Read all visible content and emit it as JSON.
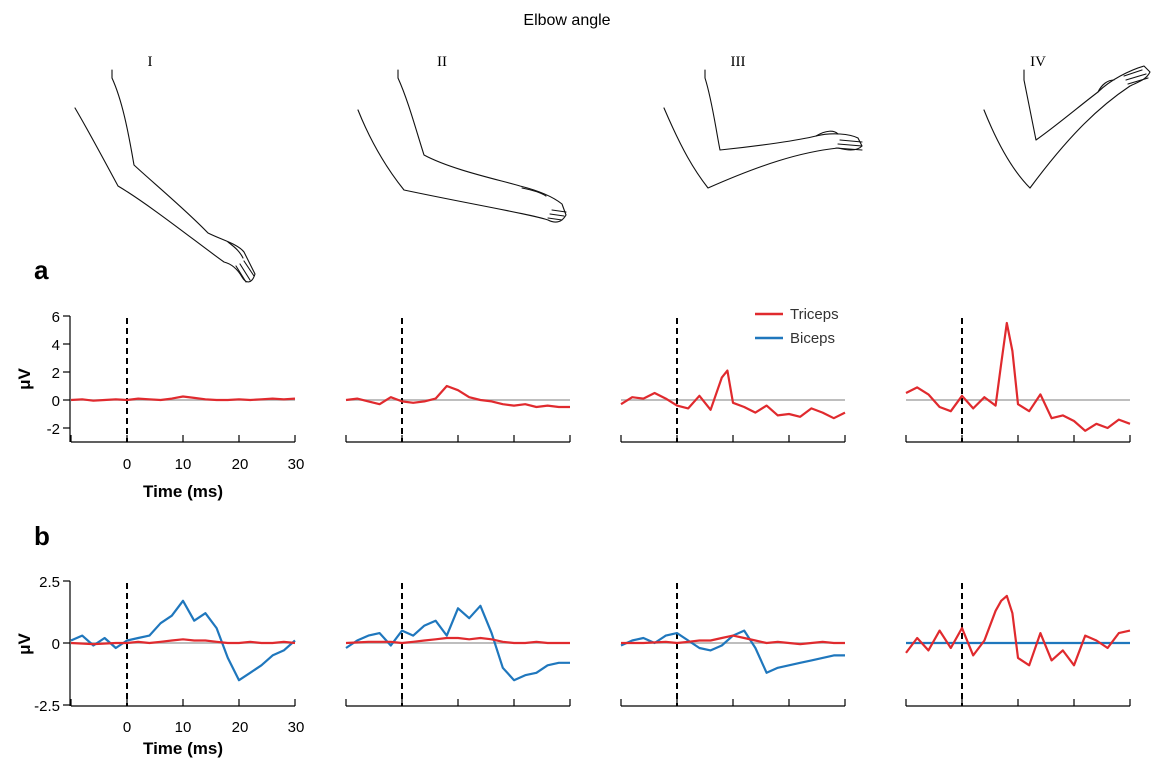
{
  "header": {
    "title": "Elbow angle",
    "positions": [
      "I",
      "II",
      "III",
      "IV"
    ]
  },
  "panels": [
    {
      "label": "a",
      "ylabel": "μV",
      "xlabel": "Time (ms)",
      "yticks": [
        "6",
        "4",
        "2",
        "0",
        "-2"
      ]
    },
    {
      "label": "b",
      "ylabel": "μV",
      "xlabel": "Time (ms)",
      "yticks": [
        "2.5",
        "0",
        "-2.5"
      ]
    }
  ],
  "xticks": [
    "0",
    "10",
    "20",
    "30"
  ],
  "legend": {
    "triceps": "Triceps",
    "biceps": "Biceps"
  },
  "colors": {
    "triceps": "#e02a2e",
    "biceps": "#1f77bd",
    "zero_line": "#a8a8a8",
    "axis": "#000000"
  },
  "chart_data": [
    {
      "type": "line",
      "panel": "a",
      "title": "",
      "xlabel": "Time (ms)",
      "ylabel": "μV",
      "xlim": [
        -10,
        30
      ],
      "ylim": [
        -3,
        6
      ],
      "stimulus_at": 0,
      "legend_position": "top-right",
      "conditions": [
        {
          "name": "I",
          "series": [
            {
              "name": "Triceps",
              "x": [
                -10,
                -8,
                -6,
                -4,
                -2,
                0,
                2,
                4,
                6,
                8,
                10,
                12,
                14,
                16,
                18,
                20,
                22,
                24,
                26,
                28,
                30
              ],
              "y": [
                0,
                0.05,
                -0.05,
                0,
                0.05,
                0,
                0.1,
                0.05,
                0,
                0.1,
                0.25,
                0.15,
                0.05,
                0,
                0,
                0.05,
                0,
                0.05,
                0.1,
                0.05,
                0.1
              ]
            }
          ]
        },
        {
          "name": "II",
          "series": [
            {
              "name": "Triceps",
              "x": [
                -10,
                -8,
                -6,
                -4,
                -2,
                0,
                2,
                4,
                6,
                8,
                10,
                12,
                14,
                16,
                18,
                20,
                22,
                24,
                26,
                28,
                30
              ],
              "y": [
                0,
                0.1,
                -0.1,
                -0.3,
                0.2,
                -0.1,
                -0.2,
                -0.1,
                0.1,
                1.0,
                0.7,
                0.2,
                0,
                -0.1,
                -0.3,
                -0.4,
                -0.3,
                -0.5,
                -0.4,
                -0.5,
                -0.5
              ]
            }
          ]
        },
        {
          "name": "III",
          "series": [
            {
              "name": "Triceps",
              "x": [
                -10,
                -8,
                -6,
                -4,
                -2,
                0,
                2,
                4,
                6,
                8,
                9,
                10,
                12,
                14,
                16,
                18,
                20,
                22,
                24,
                26,
                28,
                30
              ],
              "y": [
                -0.3,
                0.2,
                0.1,
                0.5,
                0.1,
                -0.4,
                -0.6,
                0.3,
                -0.7,
                1.6,
                2.1,
                -0.2,
                -0.5,
                -0.9,
                -0.4,
                -1.1,
                -1.0,
                -1.2,
                -0.6,
                -0.9,
                -1.3,
                -0.9
              ]
            }
          ]
        },
        {
          "name": "IV",
          "series": [
            {
              "name": "Triceps",
              "x": [
                -10,
                -8,
                -6,
                -4,
                -2,
                0,
                2,
                4,
                6,
                7,
                8,
                9,
                10,
                12,
                14,
                16,
                18,
                20,
                22,
                24,
                26,
                28,
                30
              ],
              "y": [
                0.5,
                0.9,
                0.4,
                -0.5,
                -0.8,
                0.3,
                -0.6,
                0.2,
                -0.4,
                2.6,
                5.5,
                3.5,
                -0.3,
                -0.8,
                0.4,
                -1.3,
                -1.1,
                -1.5,
                -2.2,
                -1.7,
                -2.0,
                -1.4,
                -1.7
              ]
            }
          ]
        }
      ]
    },
    {
      "type": "line",
      "panel": "b",
      "title": "",
      "xlabel": "Time (ms)",
      "ylabel": "μV",
      "xlim": [
        -10,
        30
      ],
      "ylim": [
        -2.5,
        2.5
      ],
      "stimulus_at": 0,
      "conditions": [
        {
          "name": "I",
          "series": [
            {
              "name": "Triceps",
              "x": [
                -10,
                -6,
                -2,
                0,
                2,
                4,
                6,
                8,
                10,
                12,
                14,
                16,
                18,
                20,
                22,
                24,
                26,
                28,
                30
              ],
              "y": [
                0,
                -0.05,
                0,
                0,
                0.05,
                0,
                0.05,
                0.1,
                0.15,
                0.1,
                0.1,
                0.05,
                0,
                0,
                0.05,
                0,
                0,
                0.05,
                0
              ]
            },
            {
              "name": "Biceps",
              "x": [
                -10,
                -8,
                -6,
                -4,
                -2,
                0,
                2,
                4,
                6,
                8,
                10,
                12,
                14,
                16,
                18,
                20,
                22,
                24,
                26,
                28,
                30
              ],
              "y": [
                0.1,
                0.3,
                -0.1,
                0.2,
                -0.2,
                0.1,
                0.2,
                0.3,
                0.8,
                1.1,
                1.7,
                0.9,
                1.2,
                0.6,
                -0.6,
                -1.5,
                -1.2,
                -0.9,
                -0.5,
                -0.3,
                0.1
              ]
            }
          ]
        },
        {
          "name": "II",
          "series": [
            {
              "name": "Triceps",
              "x": [
                -10,
                -6,
                -2,
                0,
                2,
                4,
                6,
                8,
                10,
                12,
                14,
                16,
                18,
                20,
                22,
                24,
                26,
                28,
                30
              ],
              "y": [
                0,
                0.05,
                0.05,
                0,
                0.05,
                0.1,
                0.15,
                0.2,
                0.2,
                0.15,
                0.2,
                0.15,
                0.05,
                0,
                0,
                0.05,
                0,
                0,
                0
              ]
            },
            {
              "name": "Biceps",
              "x": [
                -10,
                -8,
                -6,
                -4,
                -2,
                0,
                2,
                4,
                6,
                8,
                10,
                12,
                14,
                16,
                18,
                20,
                22,
                24,
                26,
                28,
                30
              ],
              "y": [
                -0.2,
                0.1,
                0.3,
                0.4,
                -0.1,
                0.5,
                0.3,
                0.7,
                0.9,
                0.3,
                1.4,
                1.0,
                1.5,
                0.4,
                -1.0,
                -1.5,
                -1.3,
                -1.2,
                -0.9,
                -0.8,
                -0.8
              ]
            }
          ]
        },
        {
          "name": "III",
          "series": [
            {
              "name": "Triceps",
              "x": [
                -10,
                -6,
                -2,
                0,
                2,
                4,
                6,
                8,
                10,
                12,
                14,
                16,
                18,
                20,
                22,
                24,
                26,
                28,
                30
              ],
              "y": [
                0,
                0,
                0.05,
                0,
                0.05,
                0.1,
                0.1,
                0.2,
                0.3,
                0.2,
                0.1,
                0,
                0.05,
                0,
                -0.05,
                0,
                0.05,
                0,
                0
              ]
            },
            {
              "name": "Biceps",
              "x": [
                -10,
                -8,
                -6,
                -4,
                -2,
                0,
                2,
                4,
                6,
                8,
                10,
                12,
                14,
                16,
                18,
                20,
                22,
                24,
                26,
                28,
                30
              ],
              "y": [
                -0.1,
                0.1,
                0.2,
                0,
                0.3,
                0.4,
                0.1,
                -0.2,
                -0.3,
                -0.1,
                0.3,
                0.5,
                -0.2,
                -1.2,
                -1.0,
                -0.9,
                -0.8,
                -0.7,
                -0.6,
                -0.5,
                -0.5
              ]
            }
          ]
        },
        {
          "name": "IV",
          "series": [
            {
              "name": "Triceps",
              "x": [
                -10,
                -8,
                -6,
                -4,
                -2,
                0,
                2,
                4,
                6,
                7,
                8,
                9,
                10,
                12,
                14,
                16,
                18,
                20,
                22,
                24,
                26,
                28,
                30
              ],
              "y": [
                -0.4,
                0.2,
                -0.3,
                0.5,
                -0.2,
                0.6,
                -0.5,
                0.1,
                1.3,
                1.7,
                1.9,
                1.2,
                -0.6,
                -0.9,
                0.4,
                -0.7,
                -0.3,
                -0.9,
                0.3,
                0.1,
                -0.2,
                0.4,
                0.5
              ]
            },
            {
              "name": "Biceps",
              "x": [
                -10,
                -6,
                -2,
                0,
                2,
                4,
                6,
                8,
                10,
                12,
                14,
                16,
                18,
                20,
                22,
                24,
                26,
                28,
                30
              ],
              "y": [
                0,
                0,
                0,
                0,
                0,
                0,
                0,
                0,
                0,
                0,
                0,
                0,
                0,
                0,
                0,
                0,
                0,
                0,
                0
              ]
            }
          ]
        }
      ]
    }
  ]
}
